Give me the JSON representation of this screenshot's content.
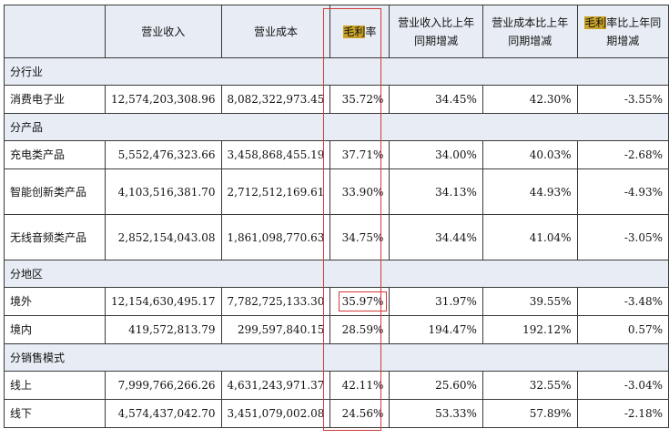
{
  "header": {
    "col_revenue": "营业收入",
    "col_cost": "营业成本",
    "col_margin_hl": "毛利",
    "col_margin_rest": "率",
    "col_rev_change": "营业收入比上年同期增减",
    "col_cost_change": "营业成本比上年同期增减",
    "col_margin_change_hl": "毛利",
    "col_margin_change_rest": "率比上年同期增减"
  },
  "sections": [
    {
      "title": "分行业",
      "rows": [
        {
          "label": "消费电子业",
          "revenue": "12,574,203,308.96",
          "cost": "8,082,322,973.45",
          "margin": "35.72%",
          "rev_change": "34.45%",
          "cost_change": "42.30%",
          "margin_change": "-3.55%"
        }
      ]
    },
    {
      "title": "分产品",
      "rows": [
        {
          "label": "充电类产品",
          "revenue": "5,552,476,323.66",
          "cost": "3,458,868,455.19",
          "margin": "37.71%",
          "rev_change": "34.00%",
          "cost_change": "40.03%",
          "margin_change": "-2.68%"
        },
        {
          "label": "智能创新类产品",
          "revenue": "4,103,516,381.70",
          "cost": "2,712,512,169.61",
          "margin": "33.90%",
          "rev_change": "34.13%",
          "cost_change": "44.93%",
          "margin_change": "-4.93%"
        },
        {
          "label": "无线音频类产品",
          "revenue": "2,852,154,043.08",
          "cost": "1,861,098,770.63",
          "margin": "34.75%",
          "rev_change": "34.44%",
          "cost_change": "41.04%",
          "margin_change": "-3.05%"
        }
      ]
    },
    {
      "title": "分地区",
      "rows": [
        {
          "label": "境外",
          "revenue": "12,154,630,495.17",
          "cost": "7,782,725,133.30",
          "margin": "35.97%",
          "rev_change": "31.97%",
          "cost_change": "39.55%",
          "margin_change": "-3.48%"
        },
        {
          "label": "境内",
          "revenue": "419,572,813.79",
          "cost": "299,597,840.15",
          "margin": "28.59%",
          "rev_change": "194.47%",
          "cost_change": "192.12%",
          "margin_change": "0.57%"
        }
      ]
    },
    {
      "title": "分销售模式",
      "rows": [
        {
          "label": "线上",
          "revenue": "7,999,766,266.26",
          "cost": "4,631,243,971.37",
          "margin": "42.11%",
          "rev_change": "25.60%",
          "cost_change": "32.55%",
          "margin_change": "-3.04%"
        },
        {
          "label": "线下",
          "revenue": "4,574,437,042.70",
          "cost": "3,451,079,002.08",
          "margin": "24.56%",
          "rev_change": "53.33%",
          "cost_change": "57.89%",
          "margin_change": "-2.18%"
        }
      ]
    }
  ],
  "colors": {
    "header_bg": "#e8edf5",
    "highlight": "#c9a227",
    "red_frame": "#d43a3a"
  }
}
